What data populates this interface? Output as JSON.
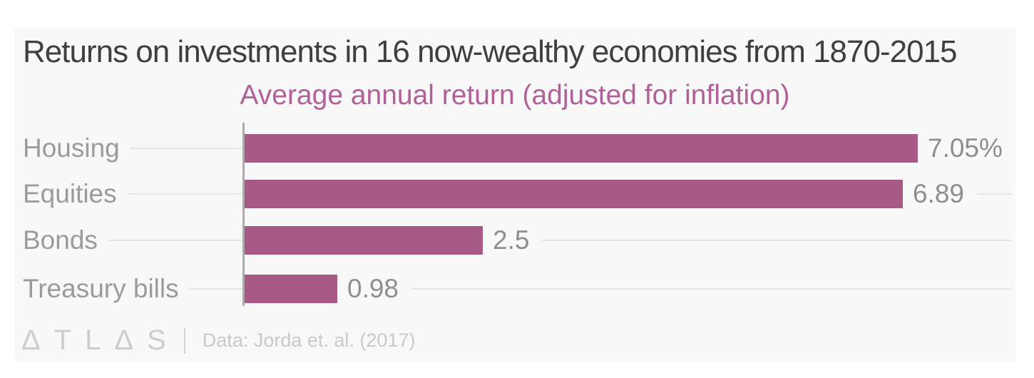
{
  "chart_data": {
    "type": "bar",
    "orientation": "horizontal",
    "title": "Returns on investments in 16 now-wealthy economies from 1870-2015",
    "subtitle": "Average annual return (adjusted for inflation)",
    "categories": [
      "Housing",
      "Equities",
      "Bonds",
      "Treasury bills"
    ],
    "values": [
      7.05,
      6.89,
      2.5,
      0.98
    ],
    "value_labels": [
      "7.05%",
      "6.89",
      "2.5",
      "0.98"
    ],
    "xlim": [
      0,
      7.05
    ],
    "grid": "off",
    "legend": "none",
    "bar_color": "#a85a87",
    "subtitle_color": "#b16198",
    "title_color": "#3f3f3f",
    "label_color": "#9b9b9b",
    "value_color": "#8e8e8e",
    "axis_color": "#ababab",
    "leader_color": "#e5e5e5",
    "card_background": "#f8f8f8"
  },
  "footer": {
    "logo": "ΔTLΔS",
    "source": "Data: Jorda et. al. (2017)"
  }
}
